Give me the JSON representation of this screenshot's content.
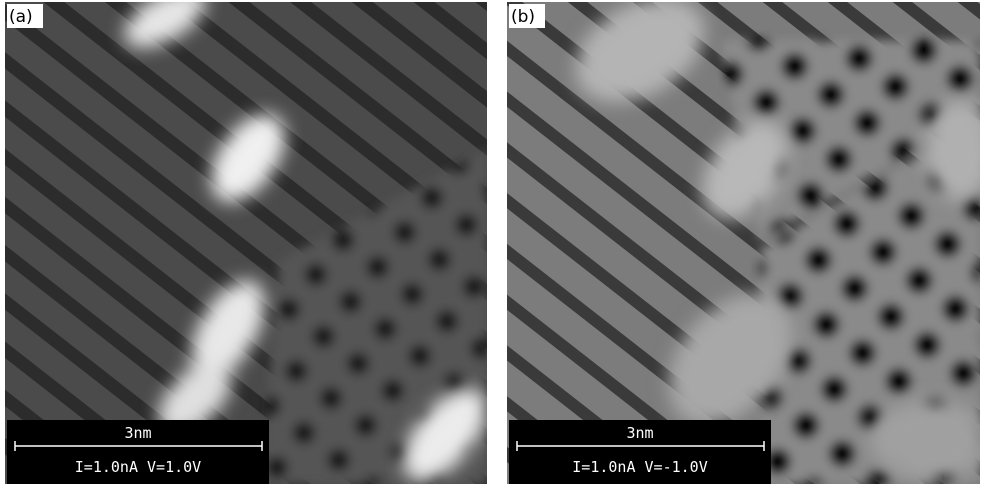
{
  "panels": [
    {
      "label": "(a)",
      "scale": "3nm",
      "params": "I=1.0nA V=1.0V"
    },
    {
      "label": "(b)",
      "scale": "3nm",
      "params": "I=1.0nA V=-1.0V"
    }
  ]
}
